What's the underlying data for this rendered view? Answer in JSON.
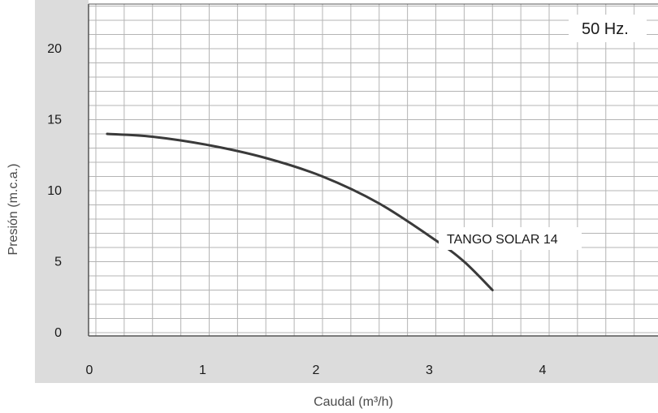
{
  "chart_data": {
    "type": "line",
    "title": "",
    "xlabel": "Caudal (m³/h)",
    "ylabel": "Presión (m.c.a.)",
    "xlim": [
      0,
      5
    ],
    "ylim": [
      0,
      23
    ],
    "x_ticks": [
      "0",
      "1",
      "2",
      "3",
      "4"
    ],
    "y_ticks": [
      "0",
      "5",
      "10",
      "15",
      "20"
    ],
    "grid": true,
    "annotation": "50 Hz.",
    "series": [
      {
        "name": "TANGO SOLAR 14",
        "x": [
          0.1,
          0.5,
          1.0,
          1.5,
          2.0,
          2.5,
          3.0,
          3.25,
          3.5
        ],
        "y": [
          14.0,
          13.8,
          13.2,
          12.3,
          11.0,
          9.1,
          6.5,
          5.0,
          3.0
        ]
      }
    ],
    "colors": {
      "line": "#3a3a3a",
      "grid": "#b4b4b4",
      "axis_band": "#dcdcdc"
    }
  }
}
